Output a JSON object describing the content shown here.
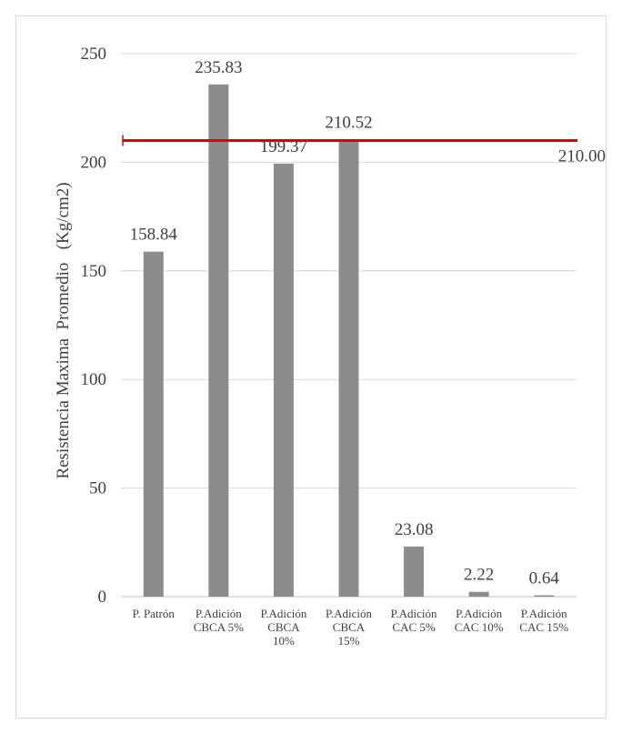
{
  "colors": {
    "bar": "#8c8c8c",
    "grid": "#d9d9d9",
    "axis_line": "#bfbfbf",
    "text": "#404040",
    "reference_line": "#e00000",
    "frame_border": "#d9d9d9"
  },
  "chart_data": {
    "type": "bar",
    "title": "",
    "xlabel": "",
    "ylabel": "Resistencia Maxima  Promedio   (Kg/cm2)",
    "ylim": [
      0,
      250
    ],
    "yticks": [
      0,
      50,
      100,
      150,
      200,
      250
    ],
    "grid": true,
    "legend": "none",
    "categories": [
      [
        "P. Patrón"
      ],
      [
        "P.Adición",
        "CBCA 5%"
      ],
      [
        "P.Adición",
        "CBCA",
        "10%"
      ],
      [
        "P.Adición",
        "CBCA",
        "15%"
      ],
      [
        "P.Adición",
        "CAC 5%"
      ],
      [
        "P.Adición",
        "CAC 10%"
      ],
      [
        "P.Adición",
        "CAC 15%"
      ]
    ],
    "values": [
      158.84,
      235.83,
      199.37,
      210.52,
      23.08,
      2.22,
      0.64
    ],
    "data_labels": [
      "158.84",
      "235.83",
      "199.37",
      "210.52",
      "23.08",
      "2.22",
      "0.64"
    ],
    "reference_line": {
      "value": 210.0,
      "label": "210.00"
    }
  }
}
